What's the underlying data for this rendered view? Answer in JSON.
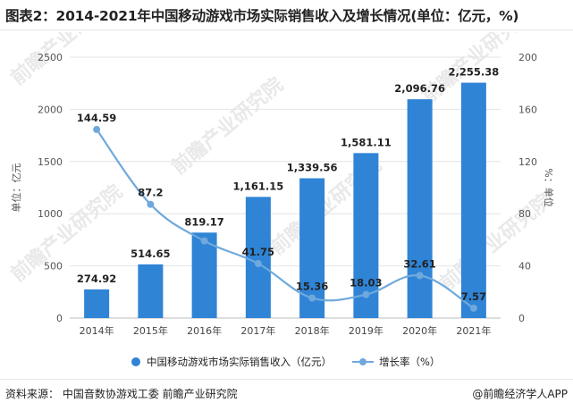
{
  "title": "图表2：2014-2021年中国移动游戏市场实际销售收入及增长情况(单位：亿元，%)",
  "source": "资料来源：  中国音数协游戏工委  前瞻产业研究院",
  "brand": "@前瞻经济学人APP",
  "watermark": "前瞻产业研究院",
  "chart_data": {
    "type": "bar",
    "categories": [
      "2014年",
      "2015年",
      "2016年",
      "2017年",
      "2018年",
      "2019年",
      "2020年",
      "2021年"
    ],
    "series": [
      {
        "name": "中国移动游戏市场实际销售收入（亿元）",
        "type": "bar",
        "axis": "left",
        "color": "#2f84d6",
        "values": [
          274.92,
          514.65,
          819.17,
          1161.15,
          1339.56,
          1581.11,
          2096.76,
          2255.38
        ],
        "labels": [
          "274.92",
          "514.65",
          "819.17",
          "1,161.15",
          "1,339.56",
          "1,581.11",
          "2,096.76",
          "2,255.38"
        ]
      },
      {
        "name": "增长率（%）",
        "type": "line",
        "axis": "right",
        "color": "#6fa9dc",
        "values": [
          144.59,
          87.2,
          59.17,
          41.75,
          15.36,
          18.03,
          32.61,
          7.57
        ],
        "labels": [
          "144.59",
          "87.2",
          "",
          "41.75",
          "15.36",
          "18.03",
          "32.61",
          "7.57"
        ]
      }
    ],
    "ylabel": "单位：亿元",
    "y2label": "%：单位",
    "ylim": [
      0,
      2500
    ],
    "y2lim": [
      0,
      200
    ],
    "yticks": [
      0,
      500,
      1000,
      1500,
      2000,
      2500
    ],
    "y2ticks": [
      0,
      40,
      80,
      120,
      160,
      200
    ],
    "grid": true,
    "legend": "bottom"
  }
}
